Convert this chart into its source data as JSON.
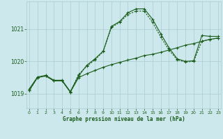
{
  "title": "Graphe pression niveau de la mer (hPa)",
  "background_color": "#cce8ec",
  "grid_color": "#aaccd0",
  "line_color": "#1a5c1a",
  "x_ticks": [
    0,
    1,
    2,
    3,
    4,
    5,
    6,
    7,
    8,
    9,
    10,
    11,
    12,
    13,
    14,
    15,
    16,
    17,
    18,
    19,
    20,
    21,
    22,
    23
  ],
  "y_ticks": [
    1019,
    1020,
    1021
  ],
  "ylim": [
    1018.55,
    1021.85
  ],
  "xlim": [
    -0.3,
    23.3
  ],
  "series1_x": [
    0,
    1,
    2,
    3,
    4,
    5,
    6,
    7,
    8,
    9,
    10,
    11,
    12,
    13,
    14,
    15,
    16,
    17,
    18,
    19,
    20,
    21,
    22,
    23
  ],
  "series1_y": [
    1019.1,
    1019.5,
    1019.55,
    1019.4,
    1019.4,
    1019.05,
    1019.5,
    1019.62,
    1019.72,
    1019.82,
    1019.9,
    1019.97,
    1020.04,
    1020.1,
    1020.18,
    1020.22,
    1020.28,
    1020.35,
    1020.42,
    1020.5,
    1020.55,
    1020.62,
    1020.68,
    1020.72
  ],
  "series2_x": [
    0,
    1,
    2,
    3,
    4,
    5,
    6,
    7,
    8,
    9,
    10,
    11,
    12,
    13,
    14,
    15,
    16,
    17,
    18,
    19,
    20,
    21,
    22,
    23
  ],
  "series2_y": [
    1019.1,
    1019.5,
    1019.55,
    1019.4,
    1019.4,
    1019.05,
    1019.6,
    1019.85,
    1020.05,
    1020.3,
    1021.05,
    1021.2,
    1021.45,
    1021.55,
    1021.55,
    1021.2,
    1020.75,
    1020.35,
    1020.05,
    1019.98,
    1020.0,
    1020.62,
    1020.68,
    1020.72
  ],
  "series3_x": [
    0,
    1,
    2,
    3,
    4,
    5,
    6,
    7,
    8,
    9,
    10,
    11,
    12,
    13,
    14,
    15,
    16,
    17,
    18,
    19,
    20,
    21,
    22,
    23
  ],
  "series3_y": [
    1019.15,
    1019.52,
    1019.57,
    1019.42,
    1019.42,
    1019.07,
    1019.55,
    1019.88,
    1020.08,
    1020.32,
    1021.08,
    1021.23,
    1021.5,
    1021.62,
    1021.62,
    1021.3,
    1020.85,
    1020.42,
    1020.08,
    1020.0,
    1020.02,
    1020.8,
    1020.77,
    1020.77
  ]
}
